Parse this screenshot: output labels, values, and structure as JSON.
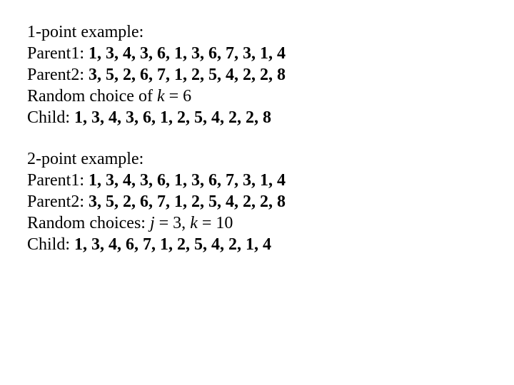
{
  "text_color": "#000000",
  "background_color": "#ffffff",
  "font_family": "Times New Roman",
  "font_size_pt": 18,
  "ex1": {
    "title": "1-point example:",
    "parent1_label": "Parent1:  ",
    "parent1_values": "1, 3, 4, 3, 6, 1, 3, 6, 7, 3, 1, 4",
    "parent2_label": "Parent2:  ",
    "parent2_values": "3, 5, 2, 6, 7, 1, 2, 5, 4, 2, 2, 8",
    "random_prefix": "Random choice of ",
    "random_var": "k",
    "random_suffix": " = 6",
    "child_label": "Child:     ",
    "child_values": "1, 3, 4, 3, 6, 1, 2, 5, 4, 2, 2, 8"
  },
  "ex2": {
    "title": "2-point example:",
    "parent1_label": "Parent1:  ",
    "parent1_values": "1, 3, 4, 3, 6, 1, 3, 6, 7, 3, 1, 4",
    "parent2_label": "Parent2:  ",
    "parent2_values": "3, 5, 2, 6, 7, 1, 2, 5, 4, 2, 2, 8",
    "random_prefix": "Random choices:  ",
    "random_var1": "j",
    "random_mid": " = 3,  ",
    "random_var2": "k",
    "random_suffix": " = 10",
    "child_label": "Child:     ",
    "child_values": "1, 3, 4, 6, 7, 1, 2, 5, 4, 2, 1, 4"
  }
}
